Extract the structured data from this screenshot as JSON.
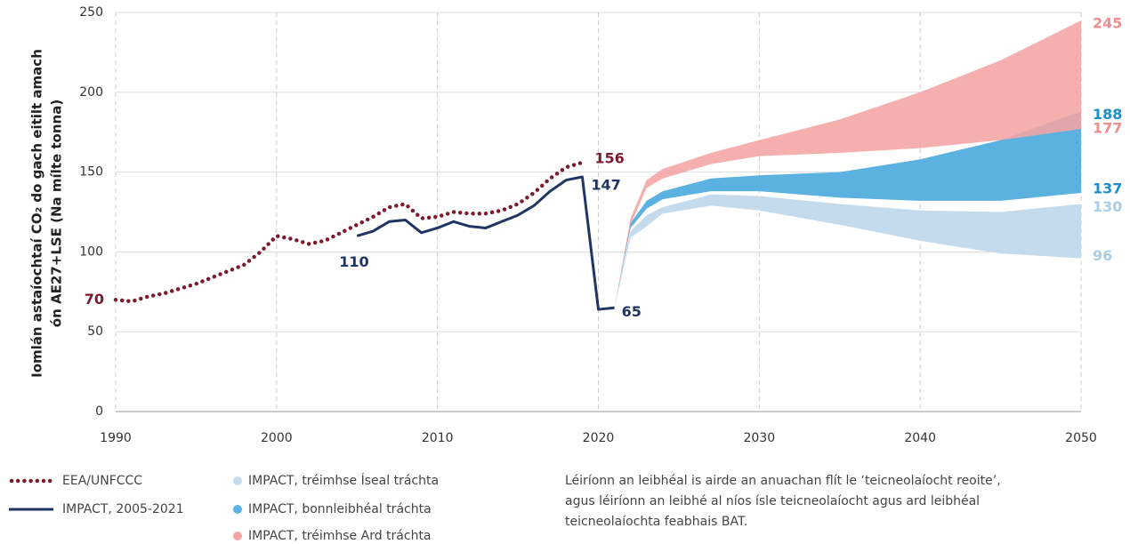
{
  "chart_data": {
    "type": "line",
    "y_label_lines": [
      "Iomlán astaíochtaí CO₂ do gach eitilt amach",
      "ón AE27+LSE (Na mílte tonna)"
    ],
    "note_lines": [
      "Léiríonn an leibhéal is airde an anuachan flít le ‘teicneolaíocht reoite’,",
      "agus léiríonn an leibhé al níos ísle teicneolaíocht  agus ard leibhéal",
      "teicneolaíochta  feabhais BAT."
    ],
    "xlim": [
      1990,
      2050
    ],
    "xticks": [
      1990,
      2000,
      2010,
      2020,
      2030,
      2040,
      2050
    ],
    "ylim": [
      0,
      250
    ],
    "yticks": [
      0,
      50,
      100,
      150,
      200,
      250
    ],
    "grid": true,
    "series": [
      {
        "name": "EEA/UNFCCC",
        "color": "#7b1c2e",
        "style": "dotted",
        "x": [
          1990,
          1991,
          1992,
          1993,
          1994,
          1995,
          1996,
          1997,
          1998,
          1999,
          2000,
          2001,
          2002,
          2003,
          2004,
          2005,
          2006,
          2007,
          2008,
          2009,
          2010,
          2011,
          2012,
          2013,
          2014,
          2015,
          2016,
          2017,
          2018,
          2019
        ],
        "values": [
          70,
          69,
          72,
          74,
          77,
          80,
          84,
          88,
          92,
          100,
          110,
          108,
          105,
          107,
          112,
          117,
          122,
          128,
          130,
          121,
          122,
          125,
          124,
          124,
          126,
          130,
          137,
          146,
          153,
          156
        ]
      },
      {
        "name": "IMPACT, 2005-2021",
        "color": "#1f3564",
        "style": "solid",
        "x": [
          2005,
          2006,
          2007,
          2008,
          2009,
          2010,
          2011,
          2012,
          2013,
          2014,
          2015,
          2016,
          2017,
          2018,
          2019,
          2020,
          2021
        ],
        "values": [
          110,
          113,
          119,
          120,
          112,
          115,
          119,
          116,
          115,
          119,
          123,
          129,
          138,
          145,
          147,
          64,
          65
        ]
      },
      {
        "name": "IMPACT, tréimhse Íseal tráchta",
        "color": "#c3dbec",
        "style": "band",
        "x": [
          2021,
          2022,
          2023,
          2024,
          2027,
          2030,
          2035,
          2040,
          2045,
          2050
        ],
        "low": [
          65,
          109,
          116,
          124,
          129,
          126,
          117,
          107,
          99,
          96
        ],
        "high": [
          65,
          113,
          123,
          128,
          136,
          135,
          130,
          126,
          125,
          130
        ]
      },
      {
        "name": "IMPACT, bonnleibhéal tráchta",
        "color": "#5bb2e0",
        "style": "band",
        "x": [
          2021,
          2022,
          2023,
          2024,
          2027,
          2030,
          2035,
          2040,
          2045,
          2050
        ],
        "low": [
          65,
          115,
          127,
          133,
          138,
          138,
          134,
          132,
          132,
          137
        ],
        "high": [
          65,
          118,
          132,
          138,
          146,
          148,
          150,
          158,
          170,
          188
        ]
      },
      {
        "name": "IMPACT, tréimhse Ard tráchta",
        "color": "#f3a4a3",
        "style": "band",
        "x": [
          2021,
          2022,
          2023,
          2024,
          2027,
          2030,
          2035,
          2040,
          2045,
          2050
        ],
        "low": [
          65,
          117,
          140,
          146,
          155,
          160,
          162,
          165,
          170,
          177
        ],
        "high": [
          65,
          121,
          145,
          152,
          162,
          170,
          183,
          200,
          220,
          245
        ]
      }
    ]
  }
}
